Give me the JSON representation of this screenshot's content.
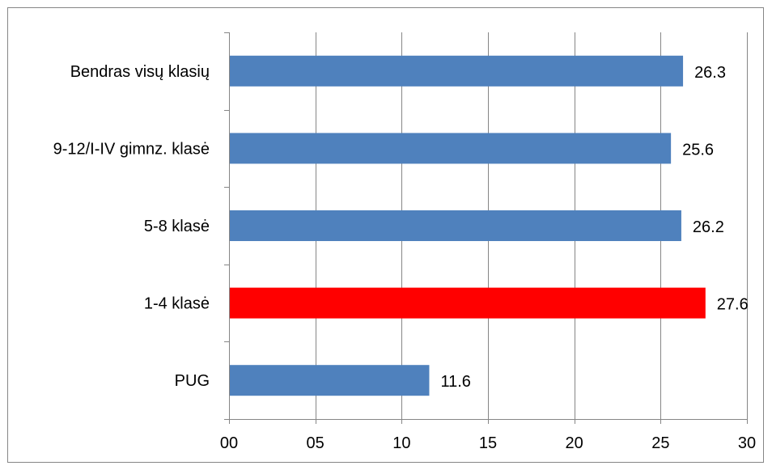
{
  "chart_data": {
    "type": "bar",
    "orientation": "horizontal",
    "title": "",
    "xlabel": "",
    "ylabel": "",
    "categories": [
      "Bendras visų klasių",
      "9-12/I-IV gimnz. klasė",
      "5-8 klasė",
      "1-4 klasė",
      "PUG"
    ],
    "values": [
      26.3,
      25.6,
      26.2,
      27.6,
      11.6
    ],
    "value_labels": [
      "26.3",
      "25.6",
      "26.2",
      "27.6",
      "11.6"
    ],
    "bar_colors": [
      "#4f81bd",
      "#4f81bd",
      "#4f81bd",
      "#ff0000",
      "#4f81bd"
    ],
    "xlim": [
      0,
      30
    ],
    "x_ticks": [
      0,
      5,
      10,
      15,
      20,
      25,
      30
    ],
    "x_tick_labels": [
      "00",
      "05",
      "10",
      "15",
      "20",
      "25",
      "30"
    ],
    "grid": "vertical",
    "legend": "none"
  }
}
